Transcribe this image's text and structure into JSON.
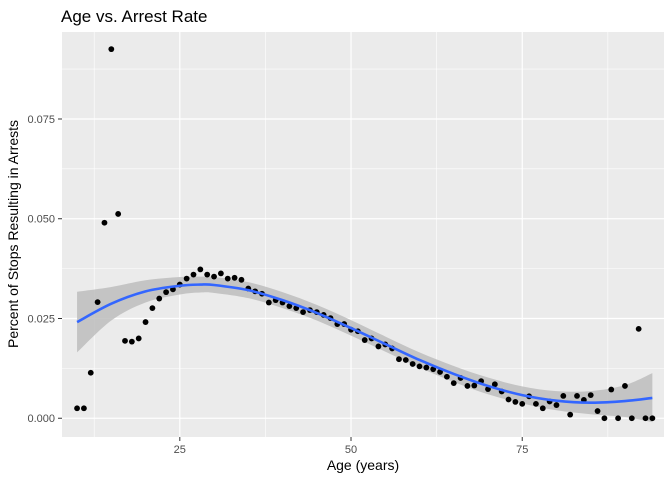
{
  "chart_data": {
    "type": "scatter",
    "title": "Age vs. Arrest Rate",
    "xlabel": "Age (years)",
    "ylabel": "Percent of Stops Resulting in Arrests",
    "xlim": [
      7.8,
      95.7
    ],
    "ylim": [
      -0.0047,
      0.0968
    ],
    "x_ticks": [
      25,
      50,
      75
    ],
    "x_tick_labels": [
      "25",
      "50",
      "75"
    ],
    "y_ticks": [
      0.0,
      0.025,
      0.05,
      0.075
    ],
    "y_tick_labels": [
      "0.000",
      "0.025",
      "0.050",
      "0.075"
    ],
    "grid": true,
    "legend": "none",
    "colors": {
      "panel_background": "#ebebeb",
      "grid_major": "#ffffff",
      "point": "#000000",
      "smooth_line": "#3366ff",
      "confidence_band": "#bdbdbd"
    },
    "points": [
      [
        10,
        0.0025
      ],
      [
        11,
        0.0025
      ],
      [
        12,
        0.0114
      ],
      [
        13,
        0.0291
      ],
      [
        14,
        0.049
      ],
      [
        15,
        0.0925
      ],
      [
        16,
        0.0512
      ],
      [
        17,
        0.0194
      ],
      [
        18,
        0.0192
      ],
      [
        19,
        0.02
      ],
      [
        20,
        0.0241
      ],
      [
        21,
        0.0276
      ],
      [
        22,
        0.03
      ],
      [
        23,
        0.0316
      ],
      [
        24,
        0.0323
      ],
      [
        25,
        0.0335
      ],
      [
        26,
        0.035
      ],
      [
        27,
        0.036
      ],
      [
        28,
        0.0373
      ],
      [
        29,
        0.036
      ],
      [
        30,
        0.0355
      ],
      [
        31,
        0.0363
      ],
      [
        32,
        0.035
      ],
      [
        33,
        0.0352
      ],
      [
        34,
        0.0347
      ],
      [
        35,
        0.0325
      ],
      [
        36,
        0.0318
      ],
      [
        37,
        0.0312
      ],
      [
        38,
        0.029
      ],
      [
        39,
        0.0296
      ],
      [
        40,
        0.029
      ],
      [
        41,
        0.0281
      ],
      [
        42,
        0.0276
      ],
      [
        43,
        0.0266
      ],
      [
        44,
        0.0271
      ],
      [
        45,
        0.0266
      ],
      [
        46,
        0.0259
      ],
      [
        47,
        0.0251
      ],
      [
        48,
        0.0236
      ],
      [
        49,
        0.0236
      ],
      [
        50,
        0.0222
      ],
      [
        51,
        0.0218
      ],
      [
        52,
        0.0196
      ],
      [
        53,
        0.02
      ],
      [
        54,
        0.018
      ],
      [
        55,
        0.0185
      ],
      [
        56,
        0.0175
      ],
      [
        57,
        0.0148
      ],
      [
        58,
        0.0146
      ],
      [
        59,
        0.0136
      ],
      [
        60,
        0.013
      ],
      [
        61,
        0.0127
      ],
      [
        62,
        0.0123
      ],
      [
        63,
        0.0116
      ],
      [
        64,
        0.0104
      ],
      [
        65,
        0.0088
      ],
      [
        66,
        0.0101
      ],
      [
        67,
        0.0081
      ],
      [
        68,
        0.0082
      ],
      [
        69,
        0.0093
      ],
      [
        70,
        0.0073
      ],
      [
        71,
        0.0085
      ],
      [
        72,
        0.0067
      ],
      [
        73,
        0.0047
      ],
      [
        74,
        0.0041
      ],
      [
        75,
        0.0036
      ],
      [
        76,
        0.0055
      ],
      [
        77,
        0.0036
      ],
      [
        78,
        0.0025
      ],
      [
        79,
        0.0042
      ],
      [
        80,
        0.0033
      ],
      [
        81,
        0.0056
      ],
      [
        82,
        0.0009
      ],
      [
        83,
        0.0056
      ],
      [
        84,
        0.0046
      ],
      [
        85,
        0.0058
      ],
      [
        86,
        0.0018
      ],
      [
        87,
        0.0
      ],
      [
        88,
        0.0072
      ],
      [
        89,
        0.0
      ],
      [
        90,
        0.0081
      ],
      [
        91,
        0.0
      ],
      [
        92,
        0.0224
      ],
      [
        93,
        0.0
      ],
      [
        94,
        0.0
      ]
    ],
    "smooth_fit": {
      "x": [
        10,
        15,
        20,
        25,
        28,
        30,
        35,
        40,
        45,
        50,
        55,
        60,
        65,
        70,
        75,
        80,
        85,
        90,
        94
      ],
      "y": [
        0.0241,
        0.0287,
        0.0318,
        0.0332,
        0.0335,
        0.0334,
        0.0321,
        0.0296,
        0.0264,
        0.0226,
        0.0186,
        0.0146,
        0.0111,
        0.0081,
        0.0058,
        0.0044,
        0.0039,
        0.0043,
        0.0051
      ],
      "ci_low": [
        0.0165,
        0.0245,
        0.029,
        0.031,
        0.0315,
        0.0314,
        0.0301,
        0.0276,
        0.0245,
        0.0207,
        0.0167,
        0.0127,
        0.0091,
        0.006,
        0.0037,
        0.002,
        0.001,
        0.0003,
        -0.001
      ],
      "ci_high": [
        0.0317,
        0.0329,
        0.0346,
        0.0354,
        0.0355,
        0.0354,
        0.0341,
        0.0316,
        0.0284,
        0.0246,
        0.0205,
        0.0165,
        0.0131,
        0.0102,
        0.008,
        0.0068,
        0.0068,
        0.0083,
        0.0113
      ]
    }
  }
}
